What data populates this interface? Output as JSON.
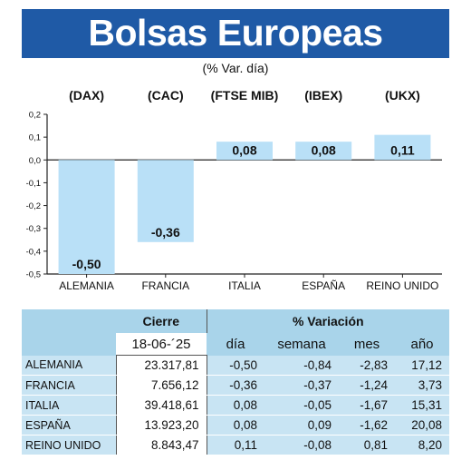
{
  "header": {
    "title": "Bolsas Europeas",
    "subtitle": "(% Var. día)"
  },
  "chart_data": {
    "type": "bar",
    "categories": [
      "ALEMANIA",
      "FRANCIA",
      "ITALIA",
      "ESPAÑA",
      "REINO UNIDO"
    ],
    "index_labels": [
      "(DAX)",
      "(CAC)",
      "(FTSE MIB)",
      "(IBEX)",
      "(UKX)"
    ],
    "values": [
      -0.5,
      -0.36,
      0.08,
      0.08,
      0.11
    ],
    "value_labels": [
      "-0,50",
      "-0,36",
      "0,08",
      "0,08",
      "0,11"
    ],
    "yticks": [
      "0,2",
      "0,1",
      "0,0",
      "-0,1",
      "-0,2",
      "-0,3",
      "-0,4",
      "-0,5"
    ],
    "ylim": [
      -0.5,
      0.2
    ],
    "bar_color": "#b9e0f7"
  },
  "table": {
    "group_headers": {
      "cierre": "Cierre",
      "variacion": "% Variación"
    },
    "date": "18-06-´25",
    "columns": [
      "día",
      "semana",
      "mes",
      "año"
    ],
    "rows": [
      {
        "name": "ALEMANIA",
        "cierre": "23.317,81",
        "dia": "-0,50",
        "semana": "-0,84",
        "mes": "-2,83",
        "ano": "17,12"
      },
      {
        "name": "FRANCIA",
        "cierre": "7.656,12",
        "dia": "-0,36",
        "semana": "-0,37",
        "mes": "-1,24",
        "ano": "3,73"
      },
      {
        "name": "ITALIA",
        "cierre": "39.418,61",
        "dia": "0,08",
        "semana": "-0,05",
        "mes": "-1,67",
        "ano": "15,31"
      },
      {
        "name": "ESPAÑA",
        "cierre": "13.923,20",
        "dia": "0,08",
        "semana": "0,09",
        "mes": "-1,62",
        "ano": "20,08"
      },
      {
        "name": "REINO UNIDO",
        "cierre": "8.843,47",
        "dia": "0,11",
        "semana": "-0,08",
        "mes": "0,81",
        "ano": "8,20"
      }
    ]
  }
}
